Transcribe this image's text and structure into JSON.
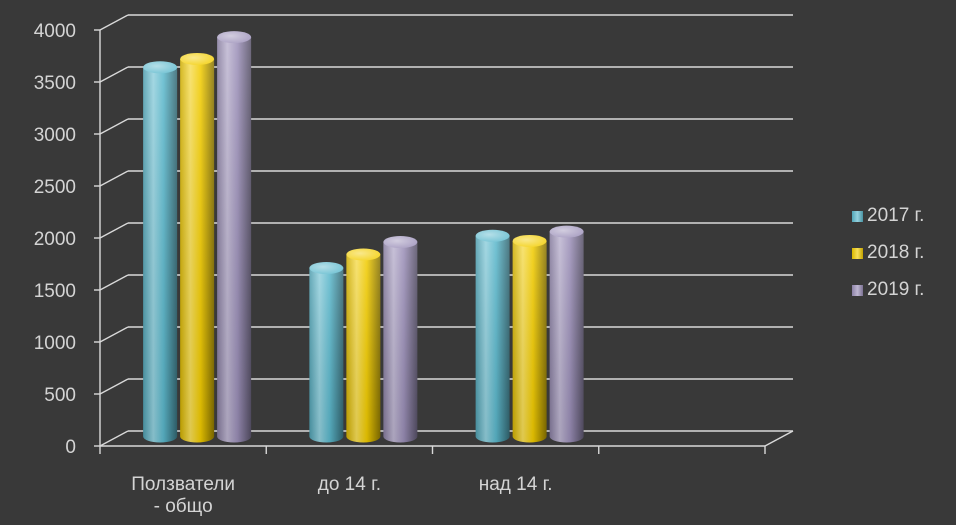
{
  "chart_data": {
    "type": "bar",
    "categories": [
      "Ползватели - общо",
      "до 14 г.",
      "над 14 г."
    ],
    "category_lines": [
      [
        "Ползватели",
        "- общо"
      ],
      [
        "до 14 г."
      ],
      [
        "над 14 г."
      ]
    ],
    "series": [
      {
        "name": "2017 г.",
        "values": [
          3550,
          1620,
          1930
        ],
        "color": "#5bb8cc"
      },
      {
        "name": "2018 г.",
        "values": [
          3630,
          1750,
          1880
        ],
        "color": "#f2cc00"
      },
      {
        "name": "2019 г.",
        "values": [
          3840,
          1870,
          1970
        ],
        "color": "#9b8fb8"
      }
    ],
    "yticks": [
      "0",
      "500",
      "1000",
      "1500",
      "2000",
      "2500",
      "3000",
      "3500",
      "4000"
    ],
    "ylim": [
      0,
      4000
    ],
    "title": "",
    "xlabel": "",
    "ylabel": "",
    "grid": true,
    "legend_position": "right",
    "style": "3d-cylinder"
  }
}
